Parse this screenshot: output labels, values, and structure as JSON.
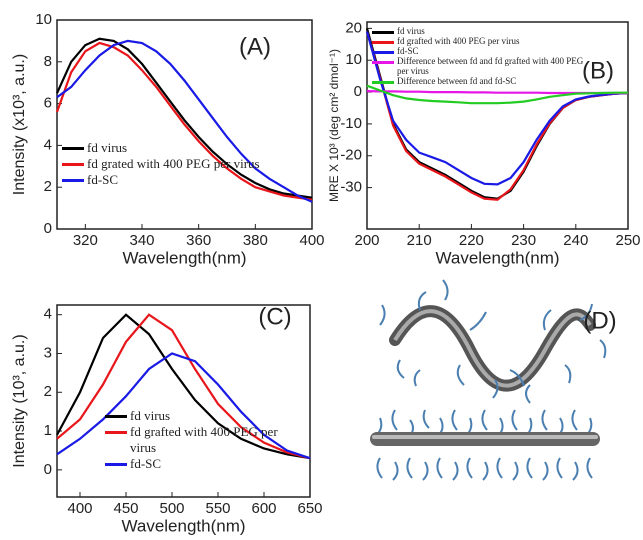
{
  "chart_data": [
    {
      "type": "line",
      "panel_label": "(A)",
      "x_label": "Wavelength(nm)",
      "y_label": "Intensity (x10³, a.u.)",
      "x": [
        310,
        315,
        320,
        325,
        330,
        335,
        340,
        345,
        350,
        355,
        360,
        365,
        370,
        375,
        380,
        385,
        390,
        395,
        400
      ],
      "xlim": [
        310,
        400
      ],
      "xticks": [
        320,
        340,
        360,
        380,
        400
      ],
      "ylim": [
        0,
        10
      ],
      "yticks": [
        0,
        2,
        4,
        6,
        8,
        10
      ],
      "series": [
        {
          "name": "fd virus",
          "color": "#000000",
          "values": [
            6.5,
            8.0,
            8.8,
            9.1,
            9.0,
            8.6,
            7.9,
            7.0,
            6.1,
            5.2,
            4.4,
            3.7,
            3.1,
            2.6,
            2.2,
            1.9,
            1.7,
            1.6,
            1.5
          ]
        },
        {
          "name": "fd grated with 400 PEG per virus",
          "color": "#e8161b",
          "values": [
            5.6,
            7.5,
            8.5,
            8.9,
            8.7,
            8.3,
            7.6,
            6.8,
            5.9,
            5.0,
            4.2,
            3.5,
            2.9,
            2.4,
            2.0,
            1.8,
            1.6,
            1.5,
            1.4
          ]
        },
        {
          "name": "fd-SC",
          "color": "#1a1ae6",
          "values": [
            6.3,
            6.8,
            7.6,
            8.3,
            8.8,
            9.0,
            8.9,
            8.5,
            7.9,
            7.1,
            6.2,
            5.3,
            4.4,
            3.6,
            2.9,
            2.4,
            2.0,
            1.6,
            1.3
          ]
        }
      ]
    },
    {
      "type": "line",
      "panel_label": "(B)",
      "x_label": "Wavelength(nm)",
      "y_label": "MRE X 10³ (deg cm² dmol⁻¹)",
      "x": [
        200,
        202.5,
        205,
        207.5,
        210,
        212.5,
        215,
        217.5,
        220,
        222.5,
        225,
        227.5,
        230,
        232.5,
        235,
        237.5,
        240,
        242.5,
        245,
        247.5,
        250
      ],
      "xlim": [
        200,
        250
      ],
      "xticks": [
        200,
        210,
        220,
        230,
        240,
        250
      ],
      "ylim": [
        -43,
        22
      ],
      "yticks": [
        -30,
        -20,
        -10,
        0,
        10,
        20
      ],
      "series": [
        {
          "name": "fd virus",
          "color": "#000000",
          "values": [
            20,
            5,
            -10,
            -18,
            -22,
            -24,
            -26,
            -28.5,
            -31,
            -33,
            -33.5,
            -31,
            -25,
            -17,
            -10,
            -5,
            -2.5,
            -1.5,
            -1,
            -0.5,
            -0.3
          ]
        },
        {
          "name": "fd grafted with 400 PEG per virus",
          "color": "#e8161b",
          "values": [
            19,
            4.5,
            -10.5,
            -18.5,
            -22.5,
            -24.5,
            -26.5,
            -29,
            -31.5,
            -33.5,
            -33.8,
            -30.5,
            -24.5,
            -16.5,
            -9.8,
            -5,
            -2.5,
            -1.5,
            -1,
            -0.5,
            -0.3
          ]
        },
        {
          "name": "fd-SC",
          "color": "#1a1ae6",
          "values": [
            19,
            4,
            -9,
            -15,
            -19,
            -20.5,
            -22,
            -24.5,
            -27,
            -28.8,
            -29,
            -27,
            -22,
            -15,
            -9,
            -4.5,
            -2.3,
            -1.4,
            -0.9,
            -0.5,
            -0.3
          ]
        },
        {
          "name": "Difference between fd and fd grafted with 400 PEG per virus",
          "color": "#e617e6",
          "values": [
            0.3,
            0.2,
            0.2,
            0.1,
            0.1,
            0,
            0,
            0,
            -0.1,
            -0.1,
            -0.2,
            -0.2,
            -0.2,
            -0.2,
            -0.3,
            -0.3,
            -0.3,
            -0.3,
            -0.3,
            -0.3,
            -0.3
          ]
        },
        {
          "name": "Difference between fd and fd-SC",
          "color": "#22cc22",
          "values": [
            2,
            0.5,
            -1,
            -2,
            -2.5,
            -2.8,
            -3,
            -3.2,
            -3.5,
            -3.5,
            -3.5,
            -3.3,
            -3,
            -2.3,
            -1.5,
            -1,
            -0.5,
            -0.4,
            -0.3,
            -0.2,
            -0.2
          ]
        }
      ]
    },
    {
      "type": "line",
      "panel_label": "(C)",
      "x_label": "Wavelength(nm)",
      "y_label": "Intensity (10³, a.u.)",
      "x": [
        375,
        400,
        425,
        450,
        475,
        500,
        525,
        550,
        575,
        600,
        625,
        650
      ],
      "xlim": [
        375,
        650
      ],
      "xticks": [
        400,
        450,
        500,
        550,
        600,
        650
      ],
      "ylim": [
        -0.7,
        4.25
      ],
      "yticks": [
        0,
        1,
        2,
        3,
        4
      ],
      "series": [
        {
          "name": "fd virus",
          "color": "#000000",
          "values": [
            0.9,
            2.0,
            3.4,
            4.0,
            3.5,
            2.6,
            1.8,
            1.2,
            0.8,
            0.55,
            0.4,
            0.3
          ]
        },
        {
          "name": "fd grafted with 400 PEG per virus",
          "color": "#e8161b",
          "values": [
            0.8,
            1.3,
            2.2,
            3.3,
            4.0,
            3.6,
            2.6,
            1.7,
            1.1,
            0.7,
            0.45,
            0.3
          ]
        },
        {
          "name": "fd-SC",
          "color": "#1a1ae6",
          "values": [
            0.4,
            0.8,
            1.3,
            1.9,
            2.6,
            3.0,
            2.8,
            2.2,
            1.5,
            0.9,
            0.5,
            0.3
          ]
        }
      ]
    }
  ],
  "illustration": {
    "panel_label": "(D)"
  }
}
